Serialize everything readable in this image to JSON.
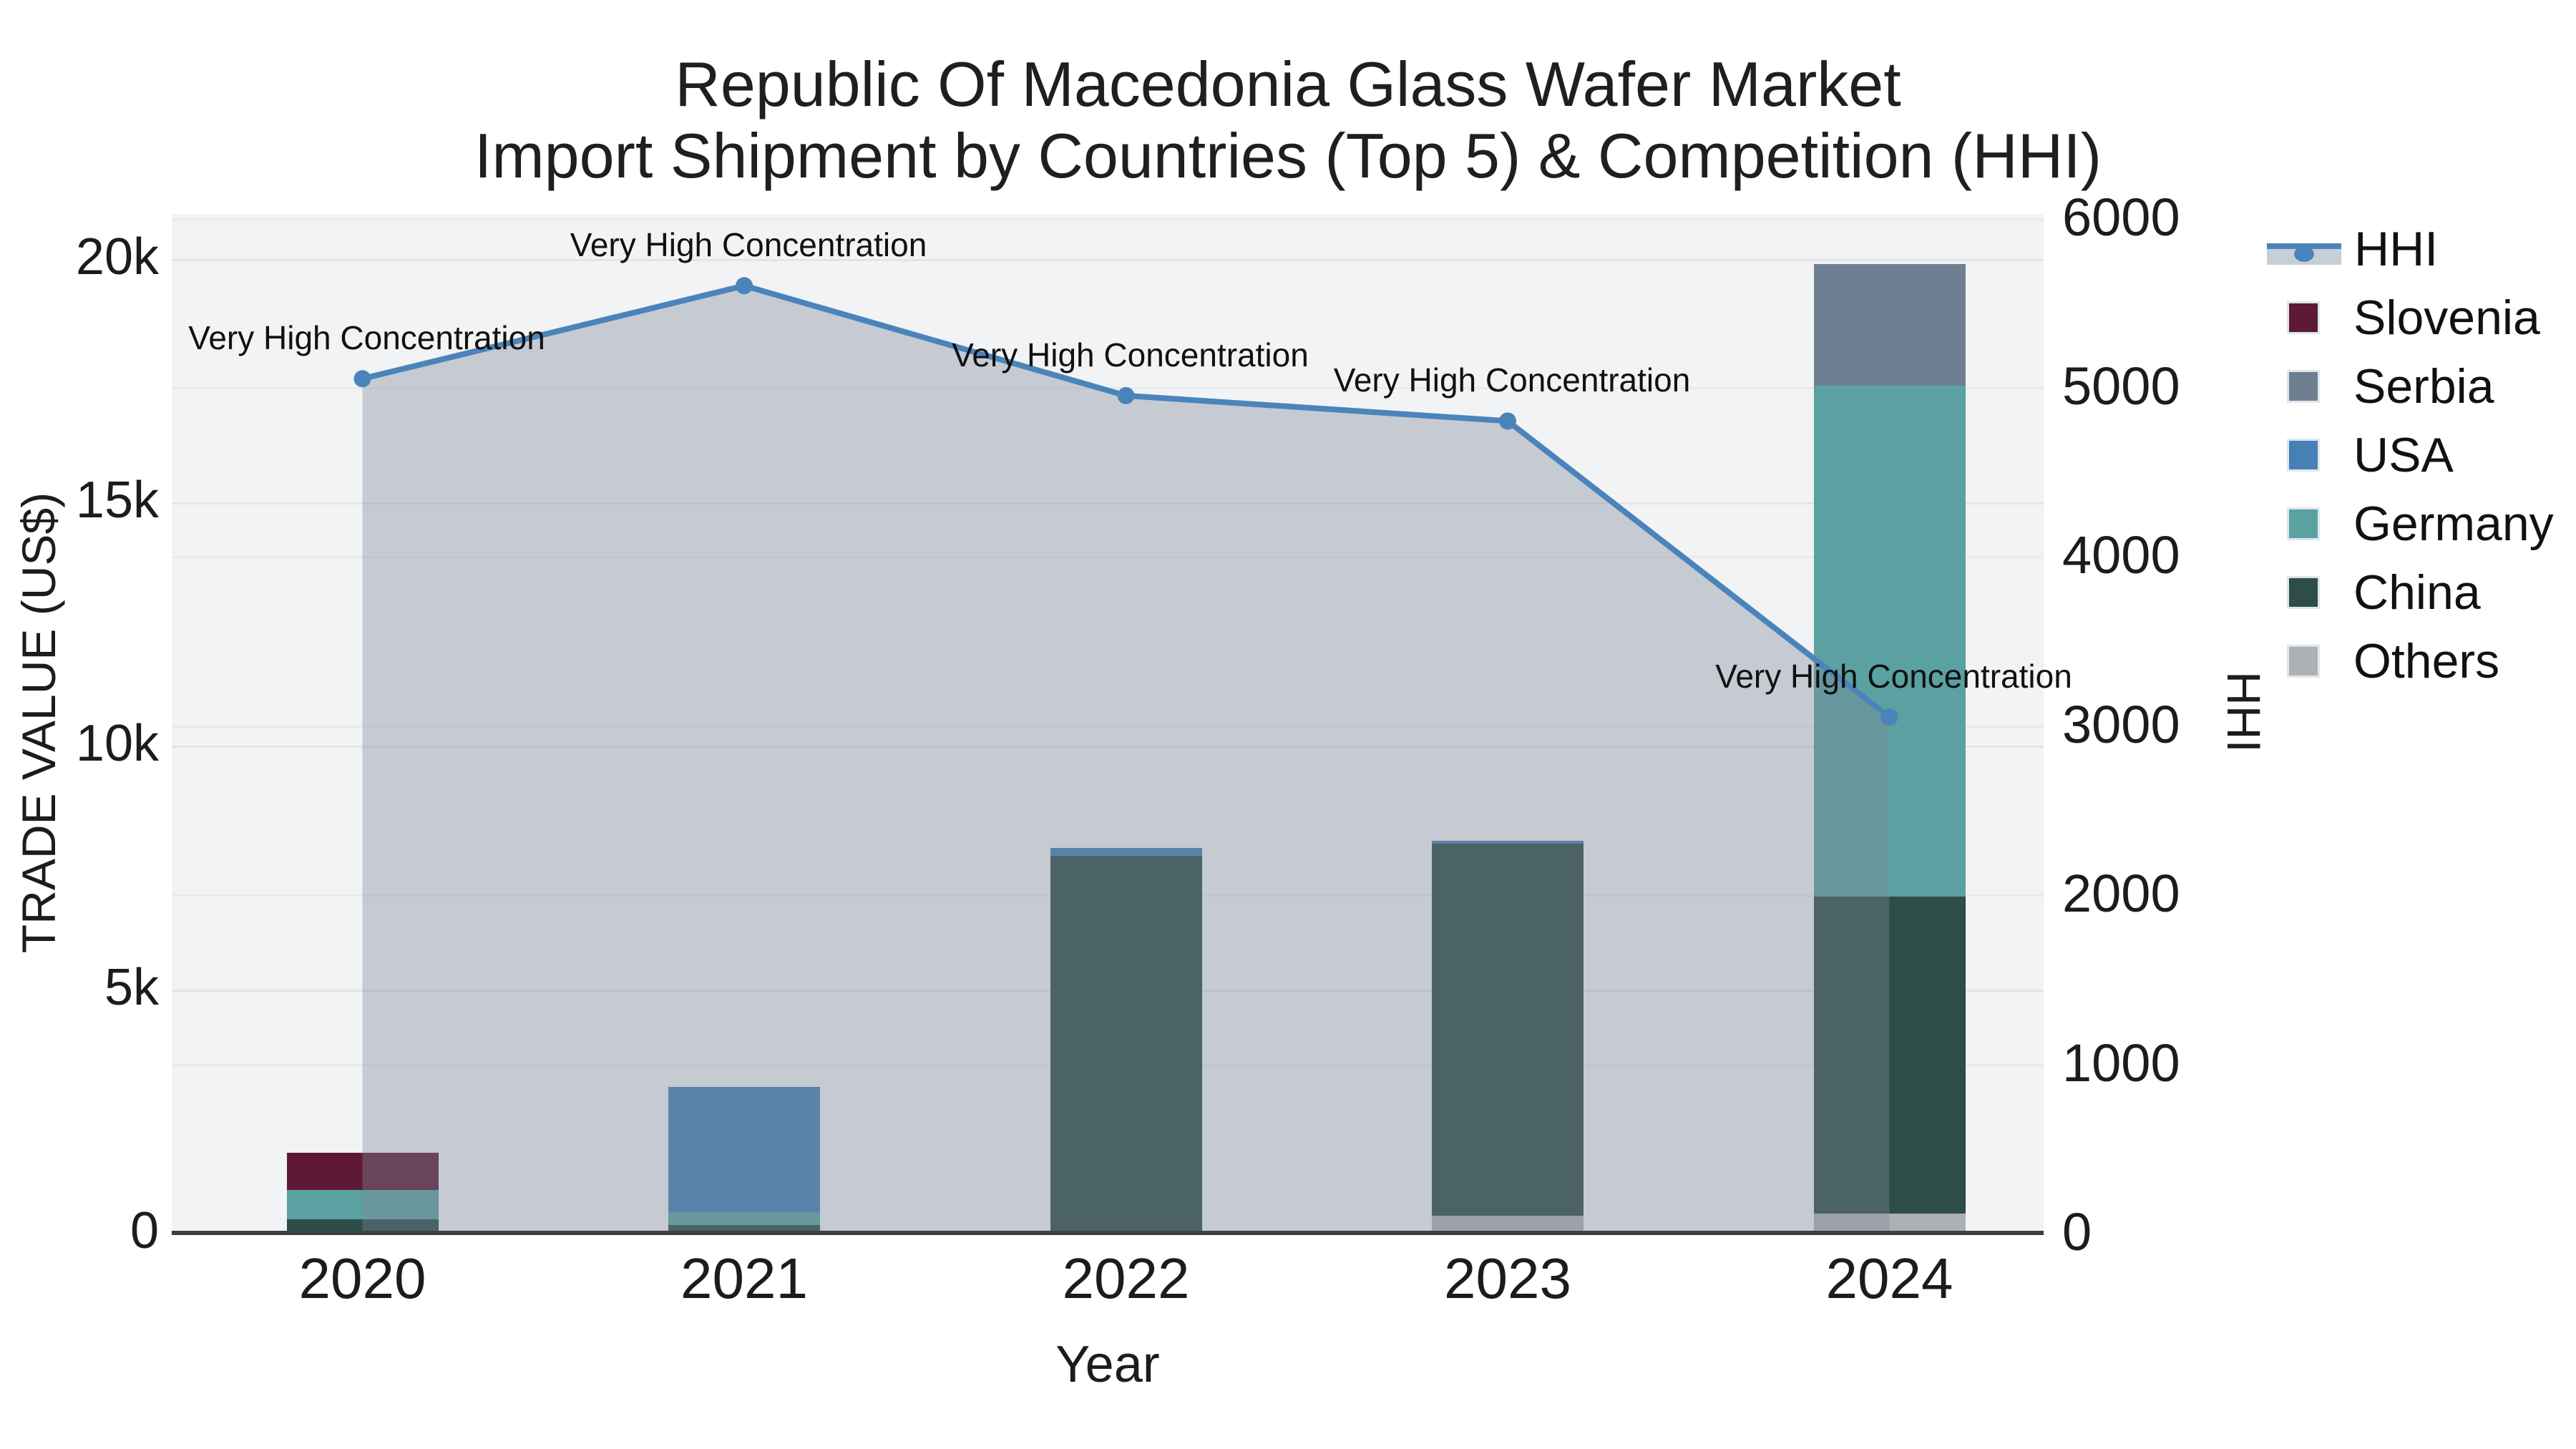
{
  "title": {
    "line1": "Republic Of Macedonia Glass Wafer Market",
    "line2": "Import Shipment by Countries (Top 5) & Competition (HHI)"
  },
  "axes": {
    "x": {
      "title": "Year",
      "tick_labels": [
        "2020",
        "2021",
        "2022",
        "2023",
        "2024"
      ]
    },
    "y_left": {
      "title": "TRADE VALUE (US$)",
      "ticks": [
        0,
        5000,
        10000,
        15000,
        20000
      ],
      "tick_labels": [
        "0",
        "5k",
        "10k",
        "15k",
        "20k"
      ],
      "range": [
        0,
        20910
      ]
    },
    "y_right": {
      "title": "HHI",
      "ticks": [
        0,
        1000,
        2000,
        3000,
        4000,
        5000,
        6000
      ],
      "tick_labels": [
        "0",
        "1000",
        "2000",
        "3000",
        "4000",
        "5000",
        "6000"
      ],
      "range": [
        0,
        6020
      ]
    }
  },
  "legend": {
    "entries": [
      {
        "label": "HHI",
        "type": "line"
      },
      {
        "label": "Slovenia",
        "type": "swatch"
      },
      {
        "label": "Serbia",
        "type": "swatch"
      },
      {
        "label": "USA",
        "type": "swatch"
      },
      {
        "label": "Germany",
        "type": "swatch"
      },
      {
        "label": "China",
        "type": "swatch"
      },
      {
        "label": "Others",
        "type": "swatch"
      }
    ]
  },
  "colors": {
    "slovenia": "#5e1a34",
    "serbia": "#6e7f91",
    "usa": "#4680b4",
    "germany": "#5ba1a1",
    "china": "#2d4d48",
    "others": "#aeb1b4",
    "hhi_line": "#4b84ba",
    "area_fill": "rgba(127,136,155,0.38)",
    "plot_bg": "#f2f3f4",
    "grid_major": "#e2e5e8",
    "grid_minor": "#e8ebed",
    "axis_line": "#3b4046"
  },
  "chart_data": {
    "type": "bar+line",
    "categories": [
      "2020",
      "2021",
      "2022",
      "2023",
      "2024"
    ],
    "bars_axis": "left",
    "stack_bottom_to_top": [
      "Others",
      "China",
      "Germany",
      "USA",
      "Serbia",
      "Slovenia"
    ],
    "series": [
      {
        "name": "Slovenia",
        "values": [
          770,
          0,
          0,
          0,
          0
        ]
      },
      {
        "name": "Serbia",
        "values": [
          0,
          0,
          0,
          0,
          2500
        ]
      },
      {
        "name": "USA",
        "values": [
          0,
          2580,
          150,
          50,
          0
        ]
      },
      {
        "name": "Germany",
        "values": [
          600,
          260,
          0,
          0,
          10500
        ]
      },
      {
        "name": "China",
        "values": [
          280,
          160,
          7750,
          7650,
          6500
        ]
      },
      {
        "name": "Others",
        "values": [
          0,
          0,
          0,
          350,
          400
        ]
      }
    ],
    "bar_totals": [
      1650,
      3000,
      7900,
      8050,
      19900
    ],
    "line_series": {
      "name": "HHI",
      "axis": "right",
      "values": [
        5050,
        5600,
        4950,
        4800,
        3050
      ]
    },
    "annotations": [
      {
        "x": "2020",
        "text": "Very High Concentration"
      },
      {
        "x": "2021",
        "text": "Very High Concentration"
      },
      {
        "x": "2022",
        "text": "Very High Concentration"
      },
      {
        "x": "2023",
        "text": "Very High Concentration"
      },
      {
        "x": "2024",
        "text": "Very High Concentration"
      }
    ],
    "xlabel": "Year",
    "ylabel_left": "TRADE VALUE (US$)",
    "ylabel_right": "HHI",
    "legend_position": "right",
    "grid": true
  }
}
